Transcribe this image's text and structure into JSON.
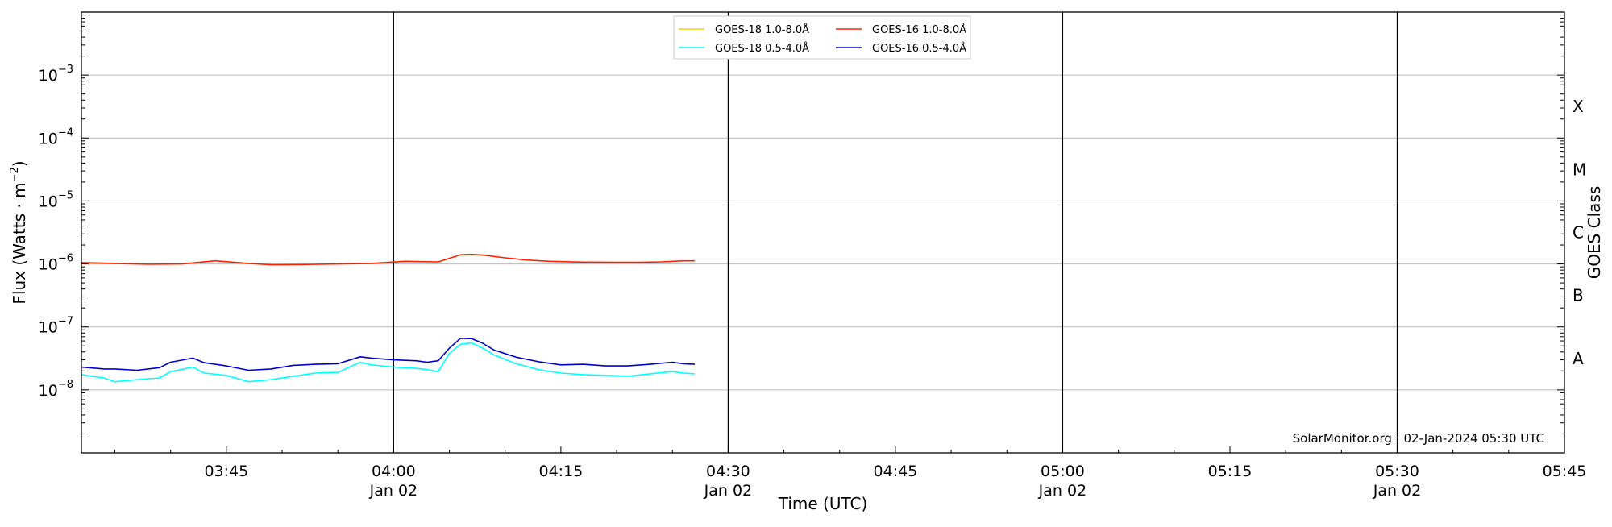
{
  "chart_data": {
    "type": "line",
    "xlabel": "Time (UTC)",
    "ylabel": "Flux (Watts · m",
    "ylabel_sup": "−2",
    "ylabel_close": ")",
    "y_scale": "log",
    "ylim": [
      1e-09,
      0.01
    ],
    "y_ticks": [
      {
        "value": 1e-08,
        "mantissa": "10",
        "exp": "−8"
      },
      {
        "value": 1e-07,
        "mantissa": "10",
        "exp": "−7"
      },
      {
        "value": 1e-06,
        "mantissa": "10",
        "exp": "−6"
      },
      {
        "value": 1e-05,
        "mantissa": "10",
        "exp": "−5"
      },
      {
        "value": 0.0001,
        "mantissa": "10",
        "exp": "−4"
      },
      {
        "value": 0.001,
        "mantissa": "10",
        "exp": "−3"
      }
    ],
    "xlim": [
      "03:32",
      "05:45"
    ],
    "x_ticks": [
      {
        "time": "03:45",
        "label": "03:45",
        "sub": ""
      },
      {
        "time": "04:00",
        "label": "04:00",
        "sub": "Jan 02"
      },
      {
        "time": "04:15",
        "label": "04:15",
        "sub": ""
      },
      {
        "time": "04:30",
        "label": "04:30",
        "sub": "Jan 02"
      },
      {
        "time": "04:45",
        "label": "04:45",
        "sub": ""
      },
      {
        "time": "05:00",
        "label": "05:00",
        "sub": "Jan 02"
      },
      {
        "time": "05:15",
        "label": "05:15",
        "sub": ""
      },
      {
        "time": "05:30",
        "label": "05:30",
        "sub": "Jan 02"
      },
      {
        "time": "05:45",
        "label": "05:45",
        "sub": ""
      }
    ],
    "day_lines": [
      "04:00",
      "04:30",
      "05:00",
      "05:30"
    ],
    "grid": "horizontal",
    "goes_class_title": "GOES Class",
    "goes_classes": [
      {
        "label": "A",
        "lower": 1e-08
      },
      {
        "label": "B",
        "lower": 1e-07
      },
      {
        "label": "C",
        "lower": 1e-06
      },
      {
        "label": "M",
        "lower": 1e-05
      },
      {
        "label": "X",
        "lower": 0.0001
      }
    ],
    "legend_position": "top-center",
    "series": [
      {
        "name": "GOES-18 1.0-8.0Å",
        "color": "#f5d800",
        "x": [],
        "values": []
      },
      {
        "name": "GOES-16 1.0-8.0Å",
        "color": "#ff2000",
        "x": [
          "03:32",
          "03:35",
          "03:38",
          "03:41",
          "03:44",
          "03:47",
          "03:49",
          "03:52",
          "03:55",
          "03:58",
          "04:01",
          "04:04",
          "04:06",
          "04:07",
          "04:08",
          "04:10",
          "04:12",
          "04:14",
          "04:17",
          "04:20",
          "04:22",
          "04:24",
          "04:26",
          "04:27"
        ],
        "values": [
          1.05e-06,
          1.02e-06,
          9.9e-07,
          1e-06,
          1.12e-06,
          1.02e-06,
          9.7e-07,
          9.8e-07,
          1e-06,
          1.02e-06,
          1.1e-06,
          1.08e-06,
          1.4e-06,
          1.42e-06,
          1.38e-06,
          1.25e-06,
          1.15e-06,
          1.1e-06,
          1.07e-06,
          1.06e-06,
          1.06e-06,
          1.08e-06,
          1.12e-06,
          1.12e-06
        ]
      },
      {
        "name": "GOES-18 0.5-4.0Å",
        "color": "#00ffff",
        "x": [
          "03:32",
          "03:34",
          "03:35",
          "03:37",
          "03:39",
          "03:40",
          "03:42",
          "03:43",
          "03:45",
          "03:47",
          "03:49",
          "03:51",
          "03:53",
          "03:55",
          "03:57",
          "03:58",
          "04:00",
          "04:02",
          "04:03",
          "04:04",
          "04:05",
          "04:06",
          "04:07",
          "04:08",
          "04:09",
          "04:11",
          "04:13",
          "04:15",
          "04:17",
          "04:19",
          "04:21",
          "04:23",
          "04:25",
          "04:26",
          "04:27"
        ],
        "values": [
          1.75e-08,
          1.55e-08,
          1.35e-08,
          1.45e-08,
          1.55e-08,
          1.95e-08,
          2.3e-08,
          1.85e-08,
          1.7e-08,
          1.35e-08,
          1.45e-08,
          1.65e-08,
          1.85e-08,
          1.9e-08,
          2.75e-08,
          2.5e-08,
          2.3e-08,
          2.2e-08,
          2.1e-08,
          1.95e-08,
          3.8e-08,
          5.3e-08,
          5.6e-08,
          4.6e-08,
          3.6e-08,
          2.6e-08,
          2.1e-08,
          1.85e-08,
          1.75e-08,
          1.7e-08,
          1.65e-08,
          1.8e-08,
          1.95e-08,
          1.85e-08,
          1.8e-08
        ]
      },
      {
        "name": "GOES-16 0.5-4.0Å",
        "color": "#0000cc",
        "x": [
          "03:32",
          "03:34",
          "03:35",
          "03:37",
          "03:39",
          "03:40",
          "03:42",
          "03:43",
          "03:45",
          "03:47",
          "03:49",
          "03:51",
          "03:53",
          "03:55",
          "03:57",
          "03:58",
          "04:00",
          "04:02",
          "04:03",
          "04:04",
          "04:05",
          "04:06",
          "04:07",
          "04:08",
          "04:09",
          "04:11",
          "04:13",
          "04:15",
          "04:17",
          "04:19",
          "04:21",
          "04:23",
          "04:25",
          "04:26",
          "04:27"
        ],
        "values": [
          2.3e-08,
          2.15e-08,
          2.15e-08,
          2.05e-08,
          2.25e-08,
          2.75e-08,
          3.2e-08,
          2.7e-08,
          2.4e-08,
          2.05e-08,
          2.15e-08,
          2.45e-08,
          2.55e-08,
          2.6e-08,
          3.35e-08,
          3.2e-08,
          3e-08,
          2.9e-08,
          2.75e-08,
          2.9e-08,
          4.6e-08,
          6.6e-08,
          6.5e-08,
          5.5e-08,
          4.3e-08,
          3.3e-08,
          2.8e-08,
          2.5e-08,
          2.55e-08,
          2.4e-08,
          2.4e-08,
          2.55e-08,
          2.75e-08,
          2.6e-08,
          2.55e-08
        ]
      }
    ],
    "credit": "SolarMonitor.org : 02-Jan-2024 05:30 UTC"
  }
}
